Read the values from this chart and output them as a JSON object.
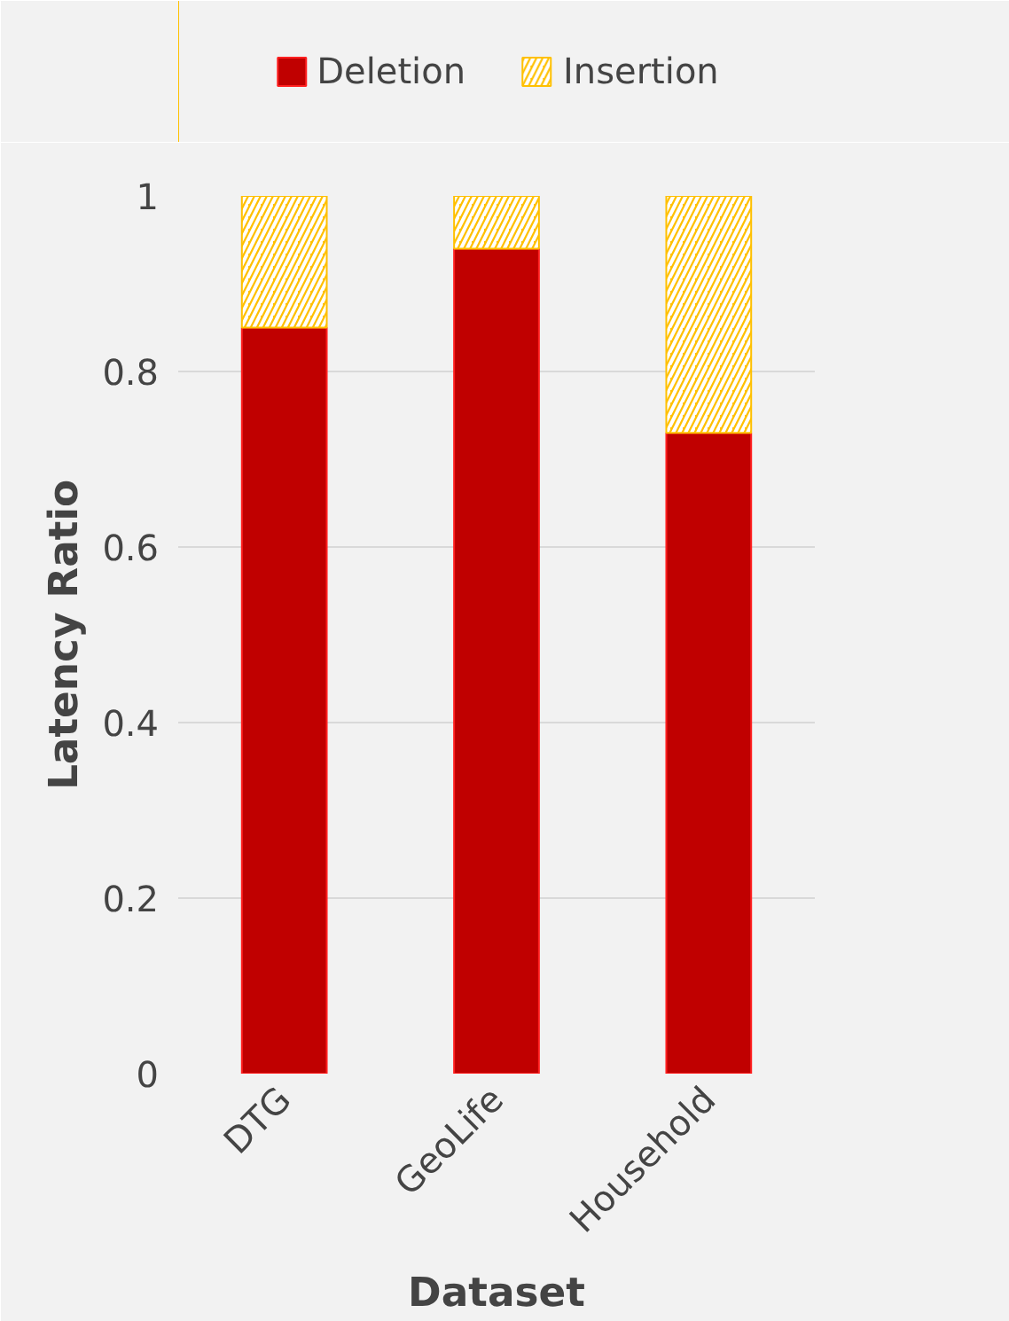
{
  "chart_data": {
    "type": "bar",
    "stacked": true,
    "xlabel": "Dataset",
    "ylabel": "Latency Ratio",
    "categories": [
      "DTG",
      "GeoLife",
      "Household"
    ],
    "series": [
      {
        "name": "Deletion",
        "color": "#c00000",
        "values": [
          0.85,
          0.94,
          0.73
        ]
      },
      {
        "name": "Insertion",
        "color": "#ffc000",
        "values": [
          0.15,
          0.06,
          0.27
        ]
      }
    ],
    "ylim": [
      0,
      1
    ],
    "yticks": [
      0,
      0.2,
      0.4,
      0.6,
      0.8,
      1
    ],
    "grid": "y",
    "legend": "top"
  }
}
